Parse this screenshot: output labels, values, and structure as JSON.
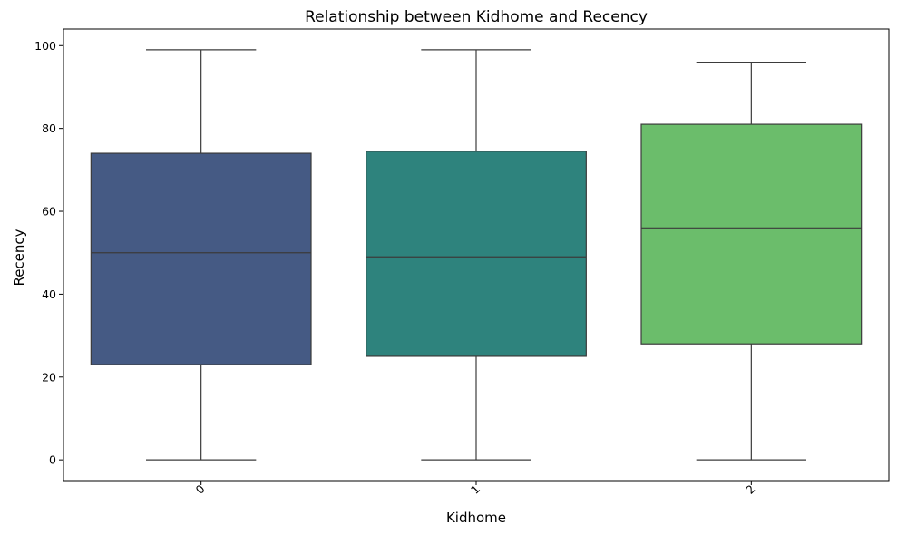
{
  "chart_data": {
    "type": "box",
    "title": "Relationship between Kidhome and Recency",
    "xlabel": "Kidhome",
    "ylabel": "Recency",
    "categories": [
      "0",
      "1",
      "2"
    ],
    "boxes": [
      {
        "category": "0",
        "whisker_low": 0,
        "q1": 23,
        "median": 50,
        "q3": 74,
        "whisker_high": 99,
        "color": "#455a84"
      },
      {
        "category": "1",
        "whisker_low": 0,
        "q1": 25,
        "median": 49,
        "q3": 74.5,
        "whisker_high": 99,
        "color": "#2e837d"
      },
      {
        "category": "2",
        "whisker_low": 0,
        "q1": 28,
        "median": 56,
        "q3": 81,
        "whisker_high": 96,
        "color": "#6bbd6b"
      }
    ],
    "ylim": [
      -5,
      104
    ],
    "yticks": [
      0,
      20,
      40,
      60,
      80,
      100
    ],
    "x_tick_rotation": 45,
    "grid": false,
    "legend": "none"
  }
}
